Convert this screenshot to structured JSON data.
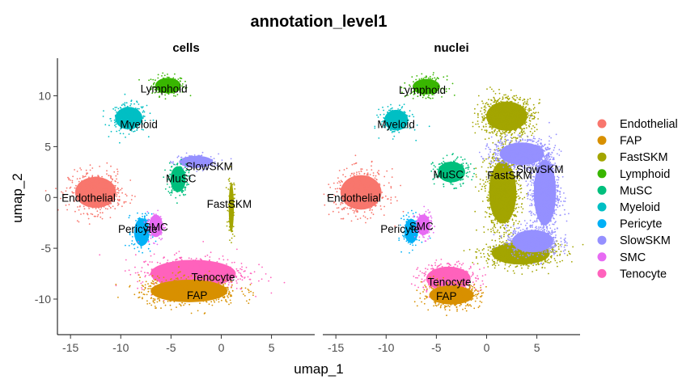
{
  "chart_data": {
    "type": "scatter",
    "title": "annotation_level1",
    "xlabel": "umap_1",
    "ylabel": "umap_2",
    "xlim": [
      -16.3,
      9.3
    ],
    "ylim": [
      -13.5,
      13.7
    ],
    "xticks": [
      -15,
      -10,
      -5,
      0,
      5
    ],
    "yticks": [
      -10,
      -5,
      0,
      5,
      10
    ],
    "xtick_labels": [
      "-15",
      "-10",
      "-5",
      "0",
      "5"
    ],
    "ytick_labels": [
      "-10",
      "-5",
      "0",
      "5",
      "10"
    ],
    "grid": false,
    "legend_position": "right",
    "legend": [
      {
        "name": "Endothelial",
        "color": "#F8766D"
      },
      {
        "name": "FAP",
        "color": "#D89000"
      },
      {
        "name": "FastSKM",
        "color": "#A3A500"
      },
      {
        "name": "Lymphoid",
        "color": "#39B600"
      },
      {
        "name": "MuSC",
        "color": "#00BF7D"
      },
      {
        "name": "Myeloid",
        "color": "#00BFC4"
      },
      {
        "name": "Pericyte",
        "color": "#00B0F6"
      },
      {
        "name": "SlowSKM",
        "color": "#9590FF"
      },
      {
        "name": "SMC",
        "color": "#E76BF3"
      },
      {
        "name": "Tenocyte",
        "color": "#FF62BC"
      }
    ],
    "facets": [
      {
        "name": "cells",
        "clusters": [
          {
            "label": "Lymphoid",
            "label_x": -5.7,
            "label_y": 10.7,
            "blobs": [
              {
                "cx": -5.3,
                "cy": 11.0,
                "rx": 1.5,
                "ry": 0.9,
                "n": 220
              }
            ]
          },
          {
            "label": "Myeloid",
            "label_x": -8.2,
            "label_y": 7.2,
            "blobs": [
              {
                "cx": -9.2,
                "cy": 7.8,
                "rx": 1.6,
                "ry": 1.3,
                "n": 260
              }
            ]
          },
          {
            "label": "SlowSKM",
            "label_x": -1.2,
            "label_y": 3.1,
            "blobs": [
              {
                "cx": -2.5,
                "cy": 3.5,
                "rx": 2.0,
                "ry": 0.7,
                "n": 150
              }
            ]
          },
          {
            "label": "MuSC",
            "label_x": -4.0,
            "label_y": 1.9,
            "blobs": [
              {
                "cx": -4.3,
                "cy": 1.8,
                "rx": 0.9,
                "ry": 1.5,
                "n": 200
              }
            ]
          },
          {
            "label": "Endothelial",
            "label_x": -13.2,
            "label_y": 0.0,
            "blobs": [
              {
                "cx": -12.5,
                "cy": 0.5,
                "rx": 2.4,
                "ry": 1.8,
                "n": 520
              }
            ]
          },
          {
            "label": "FastSKM",
            "label_x": 0.8,
            "label_y": -0.6,
            "blobs": [
              {
                "cx": 1.0,
                "cy": -1.0,
                "rx": 0.3,
                "ry": 2.8,
                "n": 110
              }
            ]
          },
          {
            "label": "Pericyte",
            "label_x": -8.3,
            "label_y": -3.1,
            "blobs": [
              {
                "cx": -7.9,
                "cy": -3.4,
                "rx": 0.9,
                "ry": 1.6,
                "n": 180
              }
            ]
          },
          {
            "label": "SMC",
            "label_x": -6.5,
            "label_y": -2.9,
            "blobs": [
              {
                "cx": -6.5,
                "cy": -2.8,
                "rx": 0.8,
                "ry": 1.3,
                "n": 140
              }
            ]
          },
          {
            "label": "Tenocyte",
            "label_x": -0.8,
            "label_y": -7.8,
            "blobs": [
              {
                "cx": -2.8,
                "cy": -7.5,
                "rx": 5.0,
                "ry": 1.6,
                "n": 560
              }
            ]
          },
          {
            "label": "FAP",
            "label_x": -2.4,
            "label_y": -9.6,
            "blobs": [
              {
                "cx": -3.2,
                "cy": -9.2,
                "rx": 4.5,
                "ry": 1.3,
                "n": 620
              }
            ]
          }
        ]
      },
      {
        "name": "nuclei",
        "clusters": [
          {
            "label": "Lymphoid",
            "label_x": -6.4,
            "label_y": 10.6,
            "blobs": [
              {
                "cx": -6.0,
                "cy": 10.9,
                "rx": 1.6,
                "ry": 0.9,
                "n": 200
              }
            ]
          },
          {
            "label": "Myeloid",
            "label_x": -9.0,
            "label_y": 7.2,
            "blobs": [
              {
                "cx": -9.0,
                "cy": 7.6,
                "rx": 1.4,
                "ry": 1.2,
                "n": 220
              }
            ]
          },
          {
            "label": "MuSC",
            "label_x": -3.8,
            "label_y": 2.3,
            "blobs": [
              {
                "cx": -3.5,
                "cy": 2.5,
                "rx": 1.6,
                "ry": 1.2,
                "n": 220
              }
            ]
          },
          {
            "label": "FastSKM",
            "label_x": 2.3,
            "label_y": 2.2,
            "blobs": [
              {
                "cx": 2.0,
                "cy": 8.0,
                "rx": 2.4,
                "ry": 1.7,
                "n": 900
              },
              {
                "cx": 1.6,
                "cy": 0.5,
                "rx": 1.6,
                "ry": 3.6,
                "n": 800
              },
              {
                "cx": 3.4,
                "cy": -5.5,
                "rx": 3.4,
                "ry": 1.3,
                "n": 600
              }
            ]
          },
          {
            "label": "SlowSKM",
            "label_x": 5.3,
            "label_y": 2.8,
            "blobs": [
              {
                "cx": 3.5,
                "cy": 4.3,
                "rx": 2.6,
                "ry": 1.3,
                "n": 700
              },
              {
                "cx": 5.8,
                "cy": 0.5,
                "rx": 1.3,
                "ry": 3.8,
                "n": 900
              },
              {
                "cx": 4.6,
                "cy": -4.3,
                "rx": 2.4,
                "ry": 1.3,
                "n": 500
              }
            ]
          },
          {
            "label": "Endothelial",
            "label_x": -13.2,
            "label_y": 0.0,
            "blobs": [
              {
                "cx": -12.5,
                "cy": 0.5,
                "rx": 2.4,
                "ry": 2.0,
                "n": 480
              }
            ]
          },
          {
            "label": "Pericyte",
            "label_x": -8.6,
            "label_y": -3.1,
            "blobs": [
              {
                "cx": -7.5,
                "cy": -3.3,
                "rx": 0.8,
                "ry": 1.4,
                "n": 160
              }
            ]
          },
          {
            "label": "SMC",
            "label_x": -6.5,
            "label_y": -2.8,
            "blobs": [
              {
                "cx": -6.3,
                "cy": -2.7,
                "rx": 0.8,
                "ry": 1.2,
                "n": 130
              }
            ]
          },
          {
            "label": "Tenocyte",
            "label_x": -3.7,
            "label_y": -8.3,
            "blobs": [
              {
                "cx": -3.8,
                "cy": -8.0,
                "rx": 2.6,
                "ry": 1.4,
                "n": 420
              }
            ]
          },
          {
            "label": "FAP",
            "label_x": -4.0,
            "label_y": -9.7,
            "blobs": [
              {
                "cx": -3.5,
                "cy": -9.6,
                "rx": 2.6,
                "ry": 1.1,
                "n": 440
              }
            ]
          }
        ]
      }
    ]
  }
}
